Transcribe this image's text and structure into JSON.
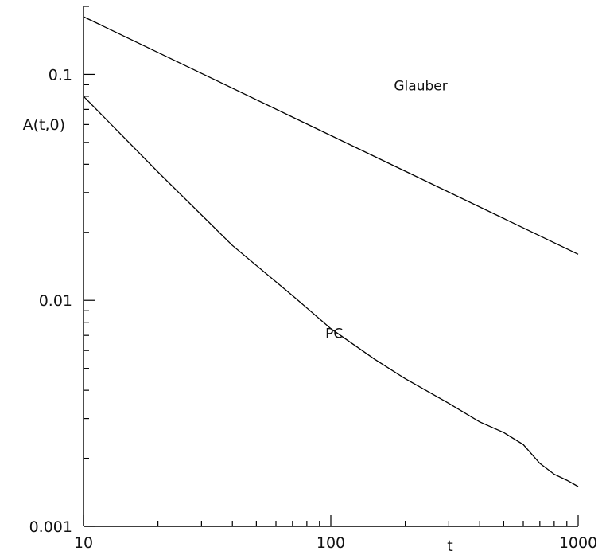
{
  "chart_data": {
    "type": "line",
    "title": "",
    "xlabel": "t",
    "ylabel": "A(t,0)",
    "x_scale": "log",
    "y_scale": "log",
    "xlim": [
      10,
      1000
    ],
    "ylim": [
      0.001,
      0.2
    ],
    "x_tick_labels": [
      {
        "value": 10,
        "label": "10"
      },
      {
        "value": 100,
        "label": "100"
      },
      {
        "value": 1000,
        "label": "1000"
      }
    ],
    "y_tick_labels": [
      {
        "value": 0.1,
        "label": "0.1"
      },
      {
        "value": 0.01,
        "label": "0.01"
      },
      {
        "value": 0.001,
        "label": "0.001"
      }
    ],
    "grid": false,
    "legend": "none",
    "series": [
      {
        "name": "Glauber",
        "label_position": {
          "x": 180,
          "y": 0.085
        },
        "points": [
          [
            10,
            0.18
          ],
          [
            1000,
            0.016
          ]
        ]
      },
      {
        "name": "PC",
        "label_position": {
          "x": 95,
          "y": 0.0068
        },
        "points": [
          [
            10,
            0.08
          ],
          [
            20,
            0.037
          ],
          [
            40,
            0.0175
          ],
          [
            70,
            0.0105
          ],
          [
            100,
            0.0075
          ],
          [
            150,
            0.0055
          ],
          [
            200,
            0.0045
          ],
          [
            300,
            0.0035
          ],
          [
            400,
            0.0029
          ],
          [
            500,
            0.0026
          ],
          [
            600,
            0.0023
          ],
          [
            700,
            0.0019
          ],
          [
            800,
            0.0017
          ],
          [
            900,
            0.0016
          ],
          [
            1000,
            0.0015
          ]
        ]
      }
    ]
  }
}
